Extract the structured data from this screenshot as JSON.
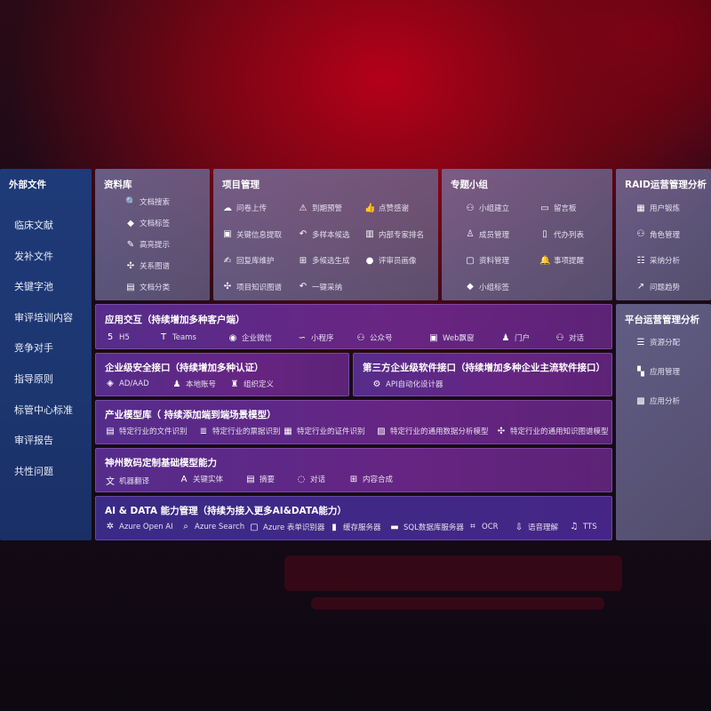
{
  "sidebar": {
    "title": "外部文件",
    "items": [
      "临床文献",
      "发补文件",
      "关键字池",
      "审评培训内容",
      "竞争对手",
      "指导原则",
      "标管中心标准",
      "审评报告",
      "共性问题"
    ]
  },
  "library": {
    "title": "资料库",
    "items": [
      {
        "label": "文档搜索",
        "icon": "doc-search-icon"
      },
      {
        "label": "文档标签",
        "icon": "tag-icon"
      },
      {
        "label": "高亮提示",
        "icon": "pen-icon"
      },
      {
        "label": "关系图谱",
        "icon": "graph-icon"
      },
      {
        "label": "文档分类",
        "icon": "doc-copy-icon"
      }
    ]
  },
  "project": {
    "title": "项目管理",
    "items": [
      {
        "label": "问卷上传",
        "icon": "cloud-upload-icon"
      },
      {
        "label": "到期预警",
        "icon": "alarm-icon"
      },
      {
        "label": "点赞感谢",
        "icon": "thumbs-up-icon"
      },
      {
        "label": "关键信息提取",
        "icon": "window-icon"
      },
      {
        "label": "多样本候选",
        "icon": "reply-icon"
      },
      {
        "label": "内部专家排名",
        "icon": "ranking-icon"
      },
      {
        "label": "回复库维护",
        "icon": "edit-icon"
      },
      {
        "label": "多候选生成",
        "icon": "puzzle-icon"
      },
      {
        "label": "评审员画像",
        "icon": "user-icon"
      },
      {
        "label": "项目知识图谱",
        "icon": "graph-icon"
      },
      {
        "label": "一键采纳",
        "icon": "reply-icon"
      }
    ]
  },
  "group": {
    "title": "专题小组",
    "items": [
      {
        "label": "小组建立",
        "icon": "users-icon"
      },
      {
        "label": "留言板",
        "icon": "bbs-icon"
      },
      {
        "label": "成员管理",
        "icon": "user-add-icon"
      },
      {
        "label": "代办列表",
        "icon": "clipboard-icon"
      },
      {
        "label": "资料管理",
        "icon": "folder-icon"
      },
      {
        "label": "事项提醒",
        "icon": "bell-icon"
      },
      {
        "label": "小组标签",
        "icon": "tag-icon"
      }
    ]
  },
  "raid": {
    "title": "RAID运营管理分析",
    "items": [
      {
        "label": "用户锻炼",
        "icon": "id-card-icon"
      },
      {
        "label": "角色管理",
        "icon": "users-icon"
      },
      {
        "label": "采纳分析",
        "icon": "qa-icon"
      },
      {
        "label": "问题趋势",
        "icon": "trend-icon"
      }
    ]
  },
  "platform": {
    "title": "平台运营管理分析",
    "items": [
      {
        "label": "资源分配",
        "icon": "list-check-icon"
      },
      {
        "label": "应用管理",
        "icon": "apps-icon"
      },
      {
        "label": "应用分析",
        "icon": "analytics-icon"
      }
    ]
  },
  "app": {
    "title": "应用交互（持续增加多种客户端）",
    "items": [
      {
        "label": "H5",
        "icon": "html5-icon"
      },
      {
        "label": "Teams",
        "icon": "teams-icon"
      },
      {
        "label": "企业微信",
        "icon": "wechat-icon"
      },
      {
        "label": "小程序",
        "icon": "miniprogram-icon"
      },
      {
        "label": "公众号",
        "icon": "users-icon"
      },
      {
        "label": "Web飘窗",
        "icon": "window-icon"
      },
      {
        "label": "门户",
        "icon": "portal-icon"
      },
      {
        "label": "对话",
        "icon": "chat-users-icon"
      }
    ]
  },
  "security": {
    "title": "企业级安全接口（持续增加多种认证）",
    "items": [
      {
        "label": "AD/AAD",
        "icon": "ad-icon"
      },
      {
        "label": "本地账号",
        "icon": "account-icon"
      },
      {
        "label": "组织定义",
        "icon": "org-icon"
      }
    ]
  },
  "thirdparty": {
    "title": "第三方企业级软件接口（持续增加多种企业主流软件接口）",
    "items": [
      {
        "label": "API自动化设计器",
        "icon": "gear-icon"
      }
    ]
  },
  "industry": {
    "title": "产业模型库（ 持续添加端到端场景模型）",
    "items": [
      {
        "label": "特定行业的文件识别",
        "icon": "file-icon"
      },
      {
        "label": "特定行业的票据识别",
        "icon": "receipt-icon"
      },
      {
        "label": "特定行业的证件识别",
        "icon": "id-card-icon"
      },
      {
        "label": "特定行业的通用数据分析模型",
        "icon": "image-icon"
      },
      {
        "label": "特定行业的通用知识图谱模型",
        "icon": "graph-icon"
      }
    ]
  },
  "base": {
    "title": "神州数码定制基础模型能力",
    "items": [
      {
        "label": "机器翻译",
        "icon": "translate-icon"
      },
      {
        "label": "关键实体",
        "icon": "entity-icon"
      },
      {
        "label": "摘要",
        "icon": "doc-icon"
      },
      {
        "label": "对话",
        "icon": "chat-icon"
      },
      {
        "label": "内容合成",
        "icon": "puzzle-icon"
      }
    ]
  },
  "aidata": {
    "title": "AI & DATA 能力管理（持续为接入更多AI&DATA能力）",
    "items": [
      {
        "label": "Azure Open AI",
        "icon": "openai-icon"
      },
      {
        "label": "Azure Search",
        "icon": "search-icon"
      },
      {
        "label": "Azure 表单识别器",
        "icon": "form-icon"
      },
      {
        "label": "缓存服务器",
        "icon": "server-icon"
      },
      {
        "label": "SQL数据库服务器",
        "icon": "database-icon"
      },
      {
        "label": "OCR",
        "icon": "ocr-icon"
      },
      {
        "label": "语音理解",
        "icon": "speech-icon"
      },
      {
        "label": "TTS",
        "icon": "tts-icon"
      }
    ]
  }
}
